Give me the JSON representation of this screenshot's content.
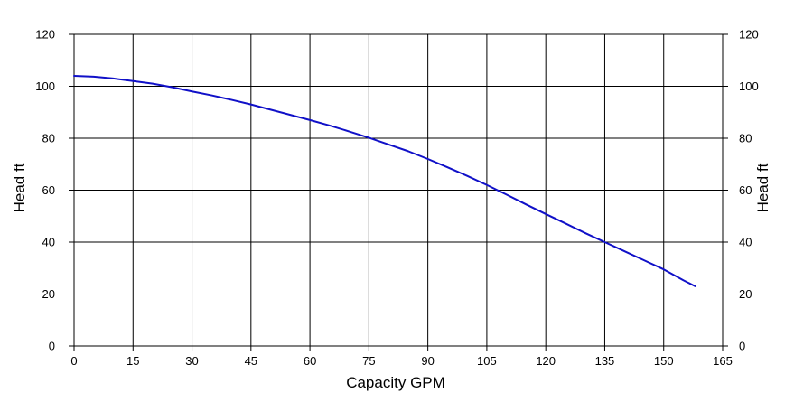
{
  "chart_data": {
    "type": "line",
    "xlabel": "Capacity GPM",
    "ylabel": "Head ft",
    "ylabel_right": "Head ft",
    "xlim": [
      0,
      165
    ],
    "ylim": [
      0,
      120
    ],
    "xticks": [
      0,
      15,
      30,
      45,
      60,
      75,
      90,
      105,
      120,
      135,
      150,
      165
    ],
    "yticks": [
      0,
      20,
      40,
      60,
      80,
      100,
      120
    ],
    "grid": true,
    "series": [
      {
        "color": "#1010c8",
        "x": [
          0,
          5,
          10,
          15,
          20,
          25,
          30,
          35,
          40,
          45,
          50,
          55,
          60,
          65,
          70,
          75,
          80,
          85,
          90,
          95,
          100,
          105,
          110,
          115,
          120,
          125,
          130,
          135,
          140,
          145,
          150,
          155,
          158
        ],
        "y": [
          104,
          103.7,
          103,
          102,
          101,
          99.6,
          98,
          96.5,
          94.8,
          93,
          91,
          89,
          87,
          84.9,
          82.6,
          80.2,
          77.6,
          75,
          72,
          68.8,
          65.5,
          62,
          58.3,
          54.5,
          50.8,
          47.2,
          43.5,
          40,
          36.5,
          33,
          29.5,
          25.3,
          23
        ]
      }
    ]
  }
}
